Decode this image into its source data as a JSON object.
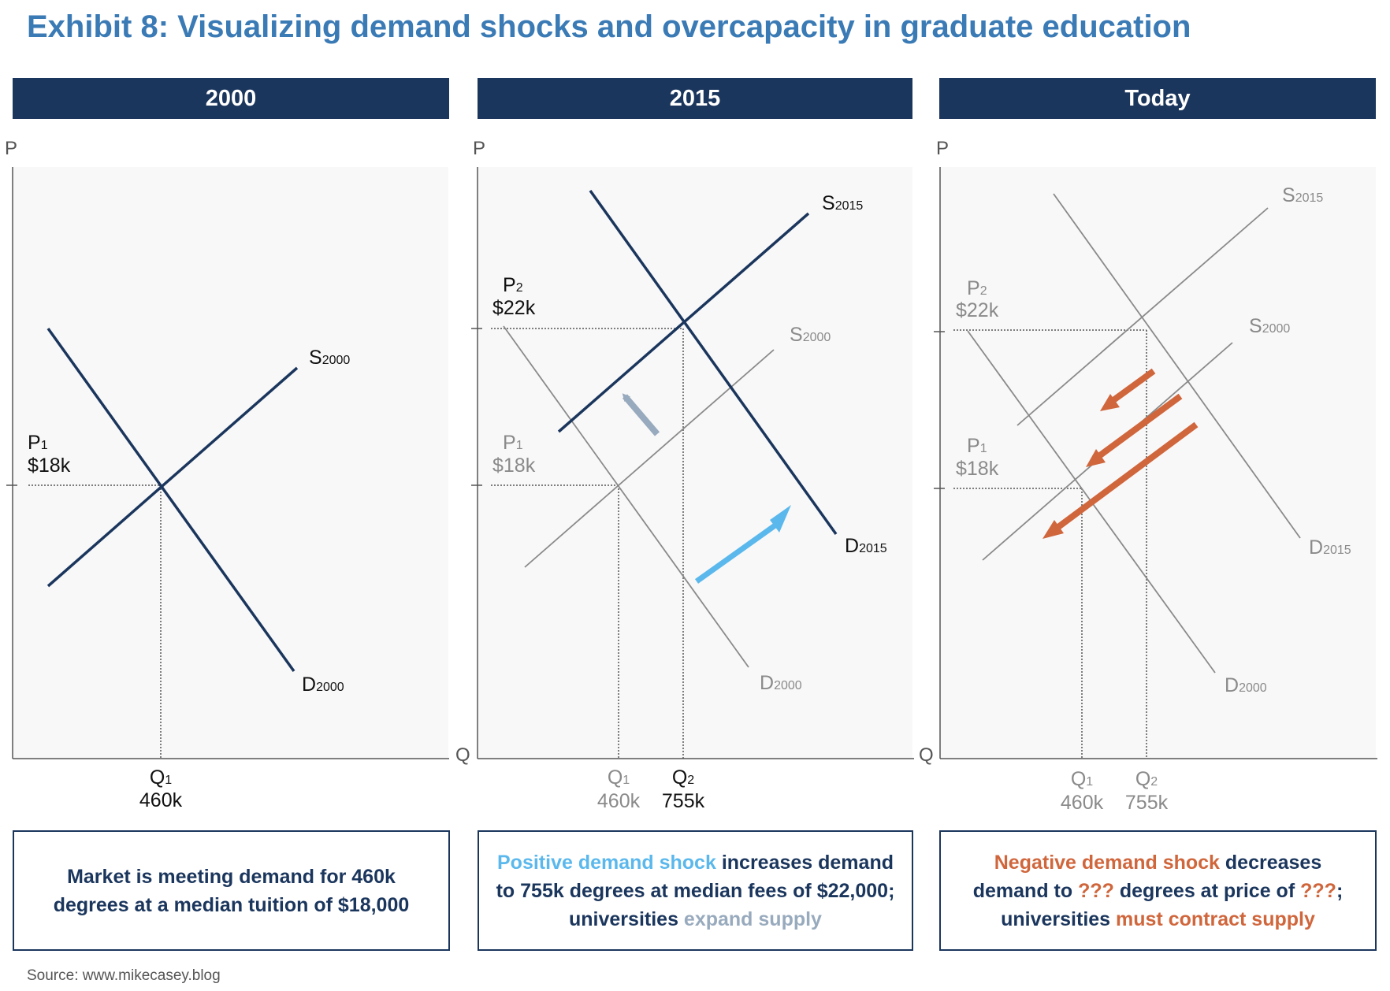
{
  "title": "Exhibit 8: Visualizing demand shocks and overcapacity in graduate education",
  "source": "Source: www.mikecasey.blog",
  "axis_labels": {
    "y": "P",
    "x": "Q"
  },
  "colors": {
    "title_blue": "#3a7ab5",
    "navy": "#1b365d",
    "light_blue": "#5bb8ec",
    "grey_arrow": "#98aabd",
    "orange": "#d0663c",
    "grey_line": "#8a8a8a"
  },
  "panels": [
    {
      "header": "2000",
      "labels": {
        "supply": "S",
        "supply_sub": "2000",
        "demand": "D",
        "demand_sub": "2000",
        "p1": "P",
        "p1_sub": "1",
        "p1_value": "$18k",
        "q1": "Q",
        "q1_sub": "1",
        "q1_value": "460k"
      },
      "caption": {
        "line1": "Market is meeting demand for 460k",
        "line2": "degrees at a median tuition of $18,000"
      }
    },
    {
      "header": "2015",
      "labels": {
        "supply_new": "S",
        "supply_new_sub": "2015",
        "supply_old": "S",
        "supply_old_sub": "2000",
        "demand_new": "D",
        "demand_new_sub": "2015",
        "demand_old": "D",
        "demand_old_sub": "2000",
        "p2": "P",
        "p2_sub": "2",
        "p2_value": "$22k",
        "p1": "P",
        "p1_sub": "1",
        "p1_value": "$18k",
        "q1": "Q",
        "q1_sub": "1",
        "q1_value": "460k",
        "q2": "Q",
        "q2_sub": "2",
        "q2_value": "755k"
      },
      "caption": {
        "highlight1": "Positive demand shock",
        "text1": " increases demand",
        "line2": "to 755k degrees at median fees of $22,000;",
        "text3": "universities ",
        "highlight3": "expand supply"
      }
    },
    {
      "header": "Today",
      "labels": {
        "supply_new": "S",
        "supply_new_sub": "2015",
        "supply_old": "S",
        "supply_old_sub": "2000",
        "demand_new": "D",
        "demand_new_sub": "2015",
        "demand_old": "D",
        "demand_old_sub": "2000",
        "p2": "P",
        "p2_sub": "2",
        "p2_value": "$22k",
        "p1": "P",
        "p1_sub": "1",
        "p1_value": "$18k",
        "q1": "Q",
        "q1_sub": "1",
        "q1_value": "460k",
        "q2": "Q",
        "q2_sub": "2",
        "q2_value": "755k"
      },
      "caption": {
        "highlight1": "Negative demand shock",
        "text1": " decreases",
        "text2a": "demand to ",
        "highlight2a": "???",
        "text2b": " degrees at price of ",
        "highlight2b": "???",
        "text2c": ";",
        "text3": "universities ",
        "highlight3": "must contract supply"
      }
    }
  ]
}
